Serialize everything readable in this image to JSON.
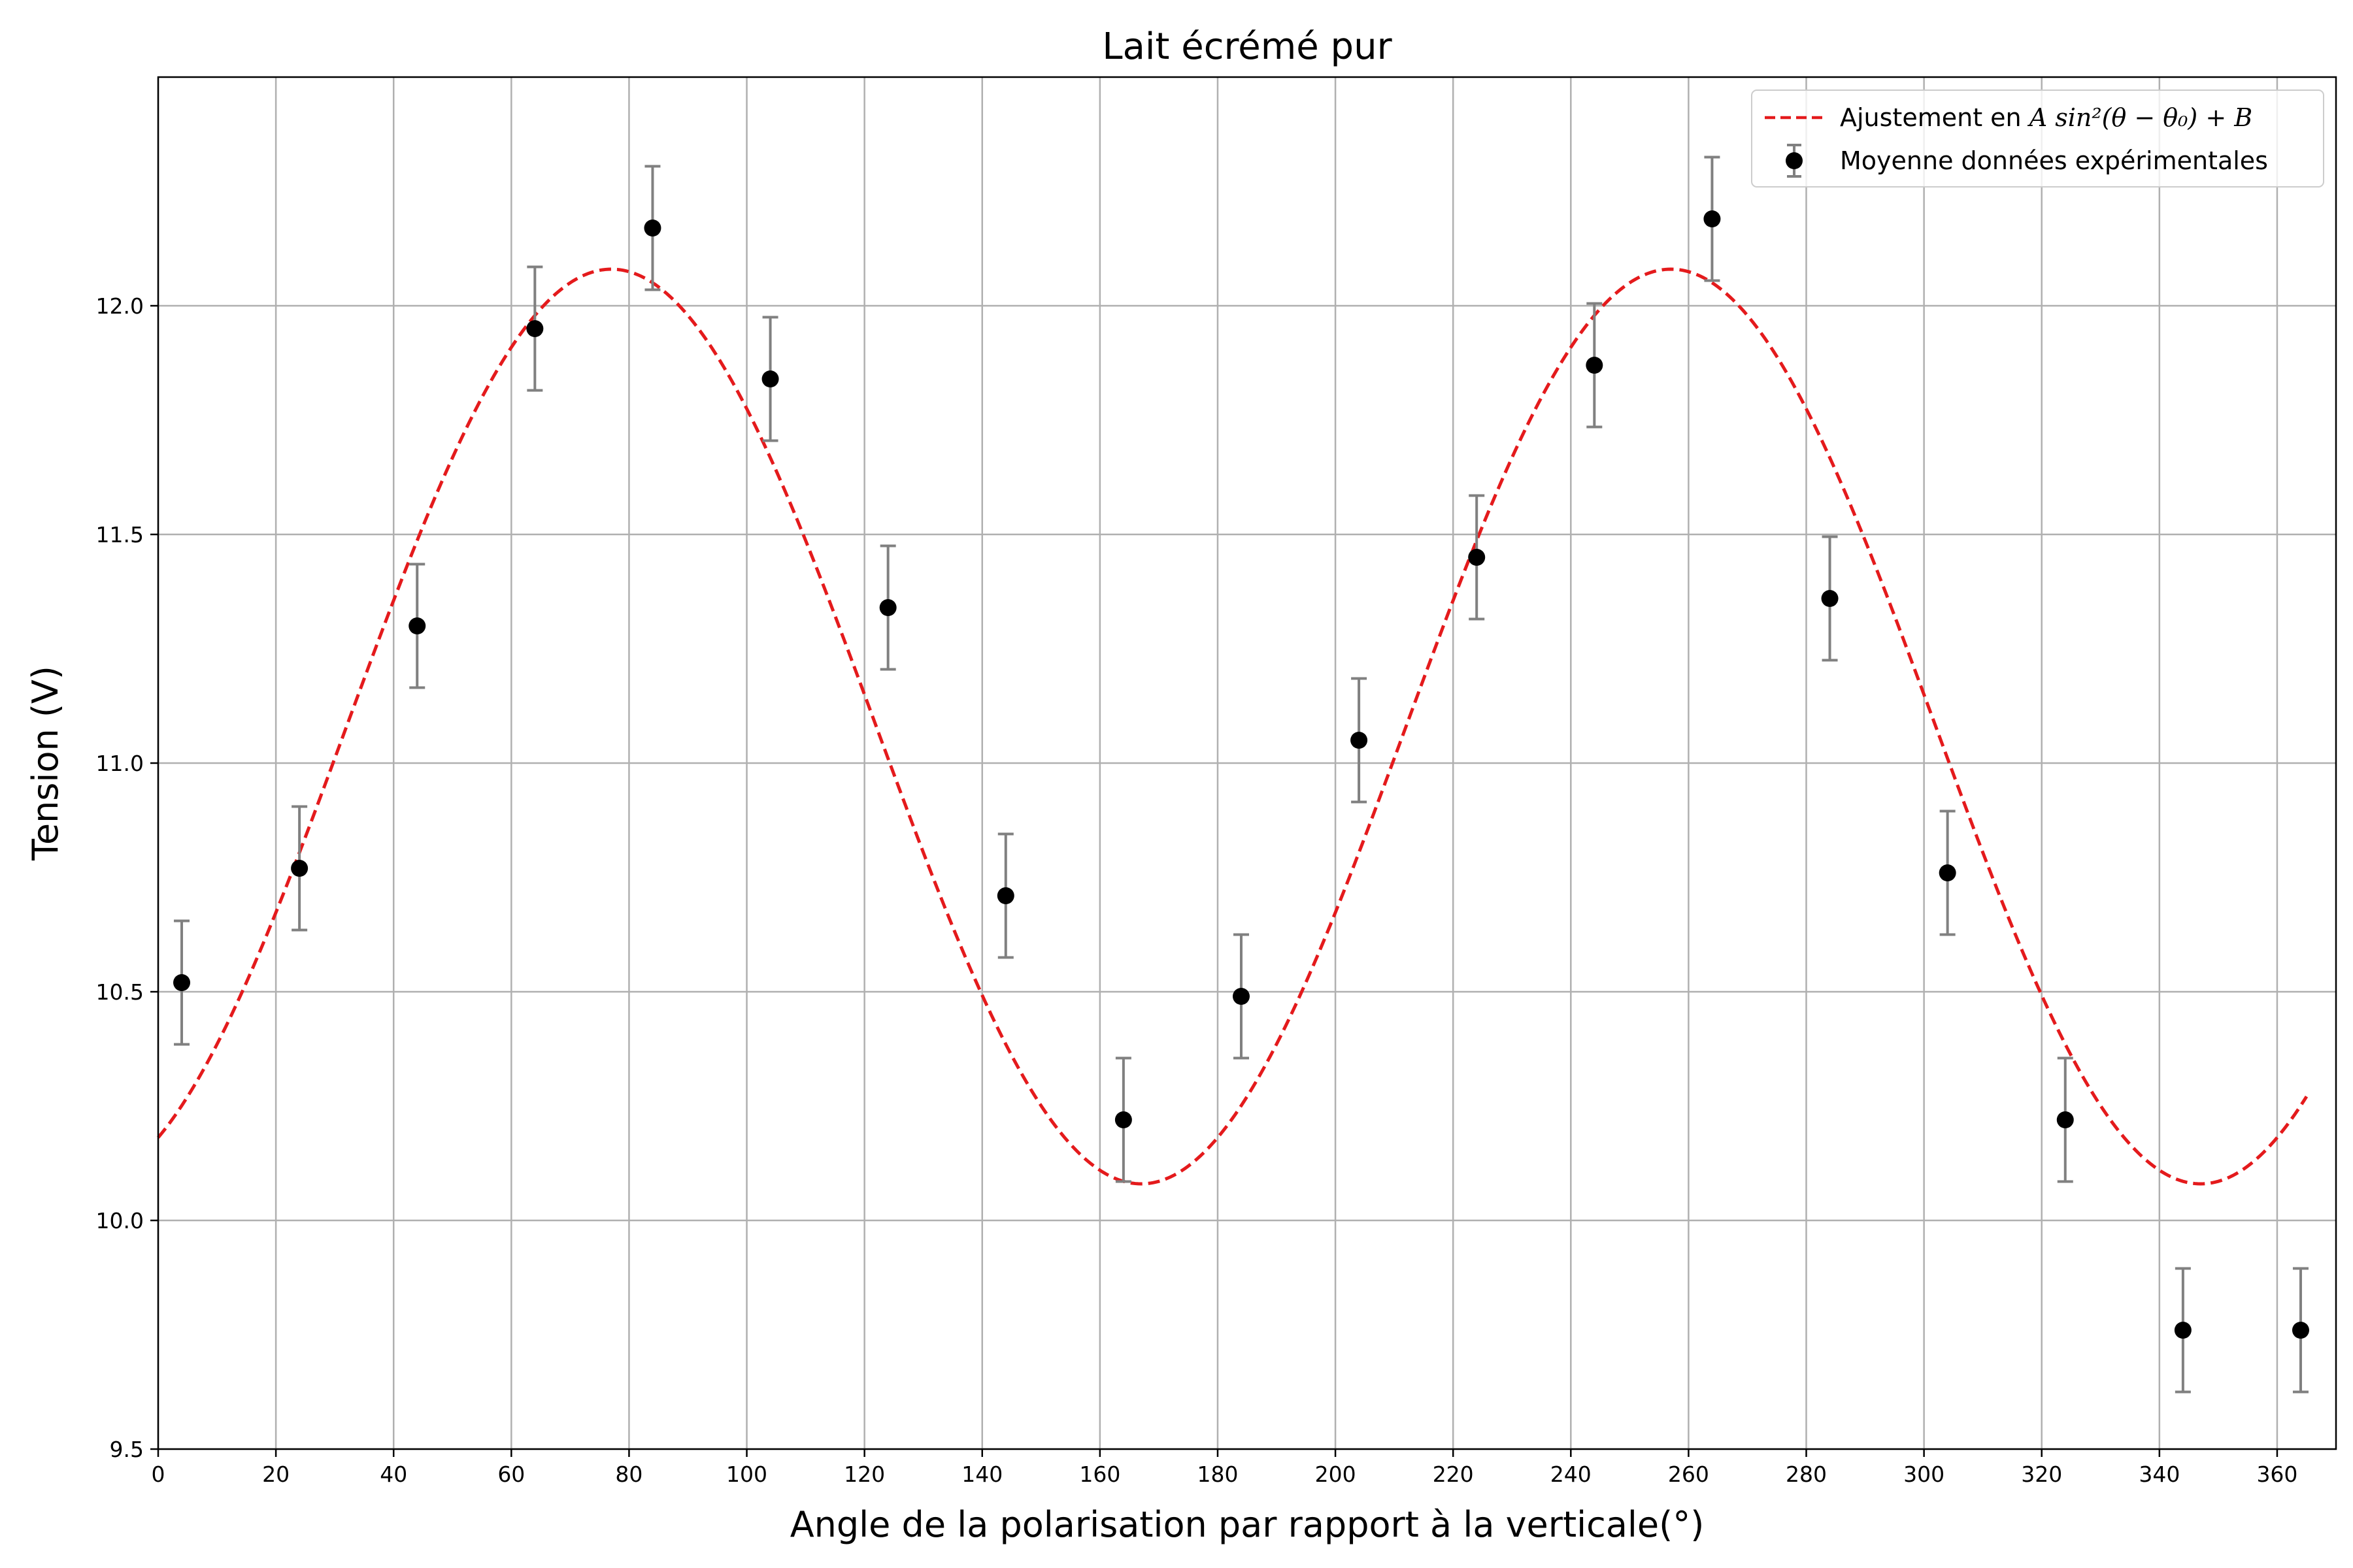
{
  "chart_data": {
    "type": "scatter",
    "title": "Lait écrémé pur",
    "xlabel": "Angle de la polarisation par rapport à la verticale(°)",
    "ylabel": "Tension (V)",
    "xlim": [
      0,
      370
    ],
    "ylim": [
      9.5,
      12.5
    ],
    "x_ticks": [
      "0",
      "20",
      "40",
      "60",
      "80",
      "100",
      "120",
      "140",
      "160",
      "180",
      "200",
      "220",
      "240",
      "260",
      "280",
      "300",
      "320",
      "340",
      "360"
    ],
    "y_ticks": [
      "9.5",
      "10.0",
      "10.5",
      "11.0",
      "11.5",
      "12.0"
    ],
    "grid": true,
    "legend_position": "top-right",
    "colors": {
      "fit": "#e41a1c",
      "points": "#000000",
      "errorbars": "#808080",
      "grid": "#b0b0b0"
    },
    "series": [
      {
        "name": "Moyenne données expérimentales",
        "kind": "errorbar-scatter",
        "x": [
          4,
          24,
          44,
          64,
          84,
          104,
          124,
          144,
          164,
          184,
          204,
          224,
          244,
          264,
          284,
          304,
          324,
          344,
          364
        ],
        "y": [
          10.52,
          10.77,
          11.3,
          11.95,
          12.17,
          11.84,
          11.34,
          10.71,
          10.22,
          10.49,
          11.05,
          11.45,
          11.87,
          12.19,
          11.36,
          10.76,
          10.22,
          9.76,
          9.76
        ],
        "yerr": [
          0.135,
          0.135,
          0.135,
          0.135,
          0.135,
          0.135,
          0.135,
          0.135,
          0.135,
          0.135,
          0.135,
          0.135,
          0.135,
          0.135,
          0.135,
          0.135,
          0.135,
          0.135,
          0.135
        ]
      },
      {
        "name": "Ajustement en A sin²(θ − θ₀) + B",
        "kind": "fit-line",
        "model": {
          "A": 2.0,
          "B": 10.08,
          "theta0_deg": -13,
          "theta_range_deg": [
            0,
            365
          ]
        }
      }
    ],
    "legend": [
      {
        "label_prefix": "Ajustement en ",
        "label_math": "A sin²(θ − θ₀) + B"
      },
      {
        "label": "Moyenne données expérimentales"
      }
    ]
  }
}
